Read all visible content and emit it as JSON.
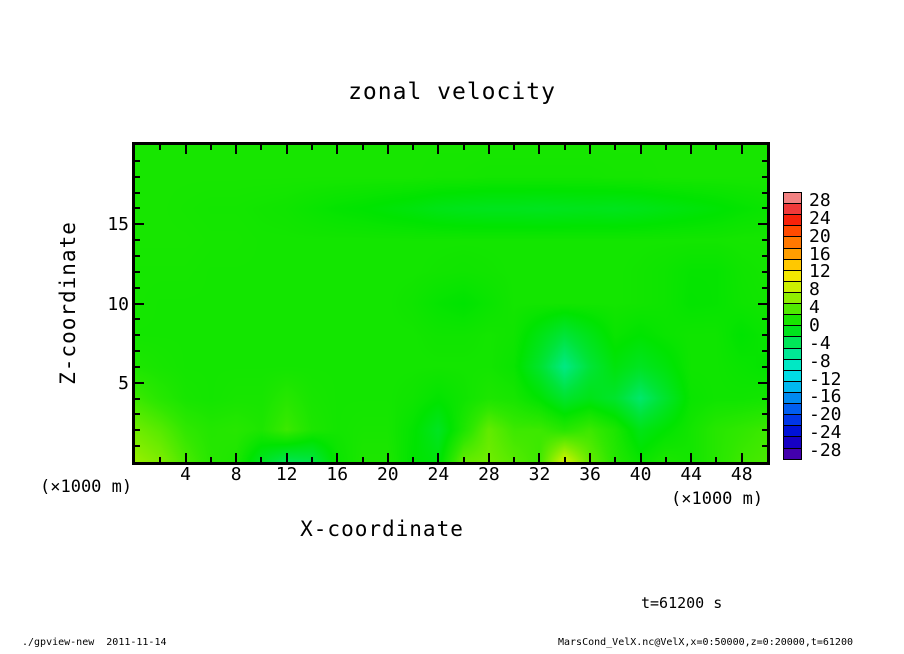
{
  "title": "zonal velocity",
  "axes": {
    "x": {
      "label": "X-coordinate",
      "units": "(×1000 m)",
      "min": 0,
      "max": 50,
      "major_ticks": [
        4,
        8,
        12,
        16,
        20,
        24,
        28,
        32,
        36,
        40,
        44,
        48
      ],
      "minor_step": 2
    },
    "z": {
      "label": "Z-coordinate",
      "units": "(×1000 m)",
      "min": 0,
      "max": 20,
      "major_ticks": [
        5,
        10,
        15
      ],
      "minor_step": 1
    }
  },
  "colorbar": {
    "min": -30,
    "max": 30,
    "cell_step": 2.5,
    "n_cells": 24,
    "labels": [
      28,
      24,
      20,
      16,
      12,
      8,
      4,
      0,
      -4,
      -8,
      -12,
      -16,
      -20,
      -24,
      -28
    ]
  },
  "annotations": {
    "time_label": "t=61200 s"
  },
  "footer": {
    "left": "./gpview-new  2011-11-14",
    "right": "MarsCond_VelX.nc@VelX,x=0:50000,z=0:20000,t=61200"
  },
  "chart_data": {
    "type": "heatmap",
    "title": "zonal velocity",
    "xlabel": "X-coordinate (×1000 m)",
    "ylabel": "Z-coordinate (×1000 m)",
    "x_range": [
      0,
      50
    ],
    "z_range": [
      0,
      20
    ],
    "time": "t=61200 s",
    "levels": {
      "min": -30,
      "max": 30,
      "step": 2.5
    },
    "x": [
      0,
      2,
      4,
      6,
      8,
      10,
      12,
      14,
      16,
      18,
      20,
      22,
      24,
      26,
      28,
      30,
      32,
      34,
      36,
      38,
      40,
      42,
      44,
      46,
      48,
      50
    ],
    "z": [
      20,
      18,
      16,
      14,
      12,
      10,
      8,
      6,
      4,
      2,
      0
    ],
    "values": [
      [
        1.2,
        1.2,
        1.2,
        1.2,
        1.2,
        1.2,
        1.2,
        1.2,
        1.2,
        1.2,
        1.2,
        1.2,
        1.2,
        1.2,
        1.2,
        1.2,
        1.2,
        1.2,
        1.2,
        1.2,
        1.2,
        1.2,
        1.2,
        1.2,
        1.2,
        1.2
      ],
      [
        1.2,
        1.2,
        1.2,
        1.2,
        1.2,
        1.2,
        1.2,
        1.2,
        1.2,
        1.2,
        1.2,
        1.2,
        1.1,
        1.1,
        1.0,
        1.0,
        1.0,
        1.0,
        1.0,
        1.1,
        1.1,
        1.2,
        1.2,
        1.2,
        1.2,
        1.2
      ],
      [
        1.2,
        1.2,
        1.1,
        1.0,
        1.0,
        0.9,
        0.8,
        0.5,
        0.2,
        0.0,
        -0.3,
        -0.6,
        -1.0,
        -1.2,
        -1.3,
        -1.3,
        -1.4,
        -1.3,
        -1.2,
        -1.3,
        -1.1,
        -0.8,
        -0.5,
        -0.2,
        0.2,
        0.5
      ],
      [
        1.2,
        1.2,
        1.2,
        1.1,
        1.1,
        1.0,
        1.0,
        1.0,
        1.0,
        1.0,
        1.0,
        1.0,
        1.0,
        1.0,
        1.0,
        1.0,
        1.0,
        1.0,
        1.0,
        1.0,
        1.0,
        1.0,
        1.0,
        1.0,
        1.1,
        1.1
      ],
      [
        1.1,
        1.1,
        1.1,
        1.0,
        1.0,
        1.0,
        1.0,
        1.0,
        1.0,
        1.0,
        1.0,
        1.0,
        0.9,
        0.8,
        0.9,
        1.0,
        1.0,
        1.0,
        1.0,
        1.0,
        0.9,
        0.7,
        0.3,
        0.3,
        0.8,
        1.0
      ],
      [
        1.1,
        1.0,
        1.0,
        1.0,
        1.0,
        1.0,
        1.0,
        1.0,
        1.0,
        1.0,
        1.0,
        0.8,
        0.3,
        0.0,
        0.5,
        1.0,
        1.0,
        1.0,
        1.0,
        1.0,
        0.9,
        0.7,
        0.2,
        0.3,
        0.7,
        0.9
      ],
      [
        1.0,
        1.0,
        1.0,
        1.0,
        1.0,
        1.0,
        1.0,
        1.0,
        1.0,
        1.0,
        1.0,
        1.0,
        0.8,
        0.8,
        1.0,
        0.8,
        -0.8,
        -2.5,
        -1.0,
        0.5,
        0.0,
        0.5,
        0.8,
        0.8,
        0.0,
        0.5
      ],
      [
        1.5,
        1.2,
        1.0,
        1.0,
        1.0,
        1.0,
        1.0,
        1.0,
        1.0,
        1.0,
        1.0,
        1.0,
        1.0,
        1.0,
        1.0,
        0.5,
        -2.0,
        -5.5,
        -2.5,
        -0.5,
        -1.5,
        -0.5,
        0.8,
        0.8,
        0.5,
        0.2
      ],
      [
        3.0,
        2.0,
        1.2,
        1.0,
        1.2,
        1.2,
        2.0,
        1.2,
        1.0,
        1.0,
        1.0,
        0.8,
        0.2,
        0.8,
        1.5,
        1.2,
        0.0,
        -2.0,
        -1.0,
        -2.0,
        -4.5,
        -2.0,
        0.5,
        0.8,
        0.8,
        1.0
      ],
      [
        5.0,
        4.0,
        2.5,
        1.8,
        2.0,
        1.5,
        3.0,
        1.5,
        1.0,
        1.2,
        1.2,
        0.2,
        -1.5,
        1.5,
        4.5,
        3.0,
        3.0,
        2.0,
        3.0,
        1.5,
        -1.0,
        0.0,
        1.0,
        2.0,
        2.5,
        3.0
      ],
      [
        6.5,
        5.5,
        3.5,
        2.0,
        1.5,
        -1.5,
        -3.5,
        -3.0,
        0.5,
        1.5,
        1.5,
        0.0,
        -0.5,
        4.5,
        5.0,
        4.0,
        3.0,
        9.0,
        4.5,
        2.0,
        0.5,
        1.5,
        1.0,
        2.0,
        3.0,
        3.5
      ]
    ],
    "colormap_stops": [
      [
        -30,
        "#5A00A0"
      ],
      [
        -25,
        "#0000D0"
      ],
      [
        -20,
        "#0048F0"
      ],
      [
        -15,
        "#00A0F0"
      ],
      [
        -12.5,
        "#00D0F0"
      ],
      [
        -10,
        "#00E8D8"
      ],
      [
        -7.5,
        "#00E8B0"
      ],
      [
        -5,
        "#00E878"
      ],
      [
        -2.5,
        "#00E438"
      ],
      [
        0,
        "#00E400"
      ],
      [
        2.5,
        "#30E800"
      ],
      [
        5,
        "#70EC00"
      ],
      [
        7.5,
        "#B0F000"
      ],
      [
        10,
        "#E8F000"
      ],
      [
        12.5,
        "#FFE000"
      ],
      [
        15,
        "#FFB000"
      ],
      [
        17.5,
        "#FF8C00"
      ],
      [
        20,
        "#FF6400"
      ],
      [
        22.5,
        "#FF3000"
      ],
      [
        25,
        "#F01414"
      ],
      [
        27.5,
        "#F06060"
      ],
      [
        30,
        "#F4A4A4"
      ]
    ],
    "legend_position": "right",
    "grid": false
  }
}
